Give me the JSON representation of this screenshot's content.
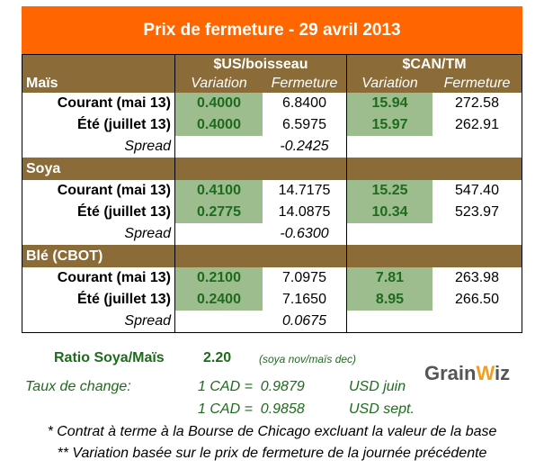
{
  "title": "Prix de fermeture - 29 avril 2013",
  "headers": {
    "us": "$US/boisseau",
    "can": "$CAN/TM",
    "variation": "Variation",
    "fermeture": "Fermeture"
  },
  "colors": {
    "title_bg": "#FF6600",
    "band_bg": "#8B6C38",
    "variation_bg": "#9DBD8E",
    "green_text": "#1E6B1E"
  },
  "sections": [
    {
      "name": "Maïs",
      "rows": [
        {
          "label": "Courant (mai 13)",
          "us_var": "0.4000",
          "us_ferm": "6.8400",
          "can_var": "15.94",
          "can_ferm": "272.58"
        },
        {
          "label": "Été (juillet 13)",
          "us_var": "0.4000",
          "us_ferm": "6.5975",
          "can_var": "15.97",
          "can_ferm": "262.91"
        }
      ],
      "spread_label": "Spread",
      "spread": "-0.2425"
    },
    {
      "name": "Soya",
      "rows": [
        {
          "label": "Courant (mai 13)",
          "us_var": "0.4100",
          "us_ferm": "14.7175",
          "can_var": "15.25",
          "can_ferm": "547.40"
        },
        {
          "label": "Été (juillet 13)",
          "us_var": "0.2775",
          "us_ferm": "14.0875",
          "can_var": "10.34",
          "can_ferm": "523.97"
        }
      ],
      "spread_label": "Spread",
      "spread": "-0.6300"
    },
    {
      "name": "Blé (CBOT)",
      "rows": [
        {
          "label": "Courant (mai 13)",
          "us_var": "0.2100",
          "us_ferm": "7.0975",
          "can_var": "7.81",
          "can_ferm": "263.98"
        },
        {
          "label": "Été (juillet 13)",
          "us_var": "0.2400",
          "us_ferm": "7.1650",
          "can_var": "8.95",
          "can_ferm": "266.50"
        }
      ],
      "spread_label": "Spread",
      "spread": "0.0675"
    }
  ],
  "ratio": {
    "label": "Ratio Soya/Maïs",
    "value": "2.20",
    "note": "(soya nov/maïs dec)"
  },
  "exchange": {
    "label": "Taux de change:",
    "rates": [
      {
        "text": "1 CAD =  0.9879",
        "unit": "USD juin"
      },
      {
        "text": "1 CAD =  0.9858",
        "unit": "USD sept."
      }
    ]
  },
  "notes": [
    "* Contrat à terme à la Bourse de Chicago excluant la valeur de la base",
    "** Variation basée sur le prix de fermeture de la journée précédente"
  ],
  "logo": {
    "text1": "Grain",
    "text2": "W",
    "text3": "iz"
  }
}
